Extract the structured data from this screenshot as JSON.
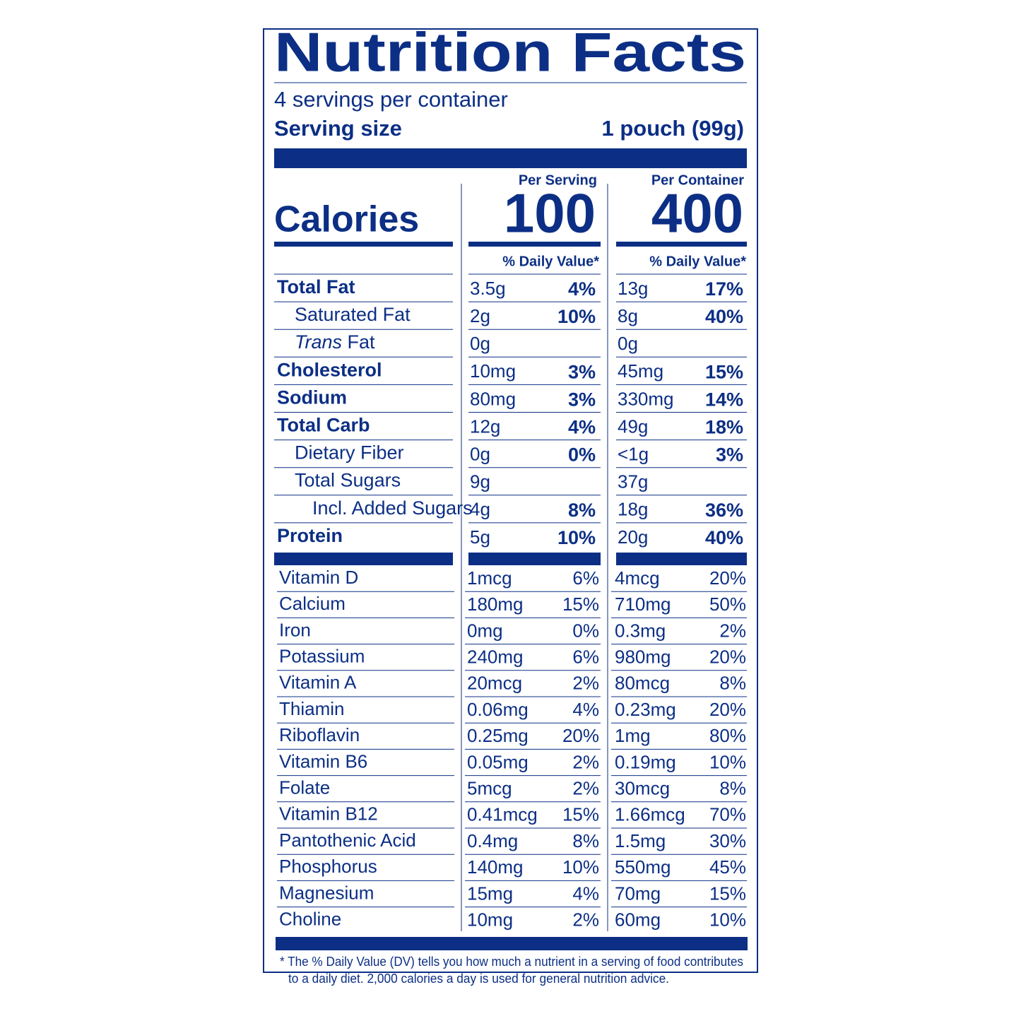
{
  "label": {
    "title": "Nutrition Facts",
    "servings": "4 servings per container",
    "serving_size": {
      "label": "Serving size",
      "value": "1 pouch (99g)"
    },
    "columns": {
      "serving": "Per Serving",
      "container": "Per Container"
    },
    "calories": {
      "label": "Calories",
      "serving": "100",
      "container": "400"
    },
    "dv_header": {
      "serving": "% Daily Value*",
      "container": "% Daily Value*"
    },
    "nutrients": [
      {
        "name": "Total Fat",
        "serving": {
          "amount": "3.5g",
          "dv": "4%"
        },
        "container": {
          "amount": "13g",
          "dv": "17%"
        }
      },
      {
        "name": "Saturated Fat",
        "serving": {
          "amount": "2g",
          "dv": "10%"
        },
        "container": {
          "amount": "8g",
          "dv": "40%"
        }
      },
      {
        "name_italic": "Trans",
        "name": "Fat",
        "serving": {
          "amount": "0g"
        },
        "container": {
          "amount": "0g"
        }
      },
      {
        "name": "Cholesterol",
        "serving": {
          "amount": "10mg",
          "dv": "3%"
        },
        "container": {
          "amount": "45mg",
          "dv": "15%"
        }
      },
      {
        "name": "Sodium",
        "serving": {
          "amount": "80mg",
          "dv": "3%"
        },
        "container": {
          "amount": "330mg",
          "dv": "14%"
        }
      },
      {
        "name": "Total Carb",
        "serving": {
          "amount": "12g",
          "dv": "4%"
        },
        "container": {
          "amount": "49g",
          "dv": "18%"
        }
      },
      {
        "name": "Dietary Fiber",
        "serving": {
          "amount": "0g",
          "dv": "0%"
        },
        "container": {
          "amount": "<1g",
          "dv": "3%"
        }
      },
      {
        "name": "Total Sugars",
        "serving": {
          "amount": "9g"
        },
        "container": {
          "amount": "37g"
        }
      },
      {
        "name": "Incl. Added Sugars",
        "serving": {
          "amount": "4g",
          "dv": "8%"
        },
        "container": {
          "amount": "18g",
          "dv": "36%"
        }
      },
      {
        "name": "Protein",
        "serving": {
          "amount": "5g",
          "dv": "10%"
        },
        "container": {
          "amount": "20g",
          "dv": "40%"
        }
      }
    ],
    "vitamins": [
      {
        "name": "Vitamin D",
        "serving": {
          "amount": "1mcg",
          "dv": "6%"
        },
        "container": {
          "amount": "4mcg",
          "dv": "20%"
        }
      },
      {
        "name": "Calcium",
        "serving": {
          "amount": "180mg",
          "dv": "15%"
        },
        "container": {
          "amount": "710mg",
          "dv": "50%"
        }
      },
      {
        "name": "Iron",
        "serving": {
          "amount": "0mg",
          "dv": "0%"
        },
        "container": {
          "amount": "0.3mg",
          "dv": "2%"
        }
      },
      {
        "name": "Potassium",
        "serving": {
          "amount": "240mg",
          "dv": "6%"
        },
        "container": {
          "amount": "980mg",
          "dv": "20%"
        }
      },
      {
        "name": "Vitamin A",
        "serving": {
          "amount": "20mcg",
          "dv": "2%"
        },
        "container": {
          "amount": "80mcg",
          "dv": "8%"
        }
      },
      {
        "name": "Thiamin",
        "serving": {
          "amount": "0.06mg",
          "dv": "4%"
        },
        "container": {
          "amount": "0.23mg",
          "dv": "20%"
        }
      },
      {
        "name": "Riboflavin",
        "serving": {
          "amount": "0.25mg",
          "dv": "20%"
        },
        "container": {
          "amount": "1mg",
          "dv": "80%"
        }
      },
      {
        "name": "Vitamin B6",
        "serving": {
          "amount": "0.05mg",
          "dv": "2%"
        },
        "container": {
          "amount": "0.19mg",
          "dv": "10%"
        }
      },
      {
        "name": "Folate",
        "serving": {
          "amount": "5mcg",
          "dv": "2%"
        },
        "container": {
          "amount": "30mcg",
          "dv": "8%"
        }
      },
      {
        "name": "Vitamin B12",
        "serving": {
          "amount": "0.41mcg",
          "dv": "15%"
        },
        "container": {
          "amount": "1.66mcg",
          "dv": "70%"
        }
      },
      {
        "name": "Pantothenic Acid",
        "serving": {
          "amount": "0.4mg",
          "dv": "8%"
        },
        "container": {
          "amount": "1.5mg",
          "dv": "30%"
        }
      },
      {
        "name": "Phosphorus",
        "serving": {
          "amount": "140mg",
          "dv": "10%"
        },
        "container": {
          "amount": "550mg",
          "dv": "45%"
        }
      },
      {
        "name": "Magnesium",
        "serving": {
          "amount": "15mg",
          "dv": "4%"
        },
        "container": {
          "amount": "70mg",
          "dv": "15%"
        }
      },
      {
        "name": "Choline",
        "serving": {
          "amount": "10mg",
          "dv": "2%"
        },
        "container": {
          "amount": "60mg",
          "dv": "10%"
        }
      }
    ],
    "footnote": [
      "* The % Daily Value (DV) tells you how much a nutrient in a serving of food contributes",
      "to a daily diet. 2,000 calories a day is used for general nutrition advice."
    ]
  }
}
